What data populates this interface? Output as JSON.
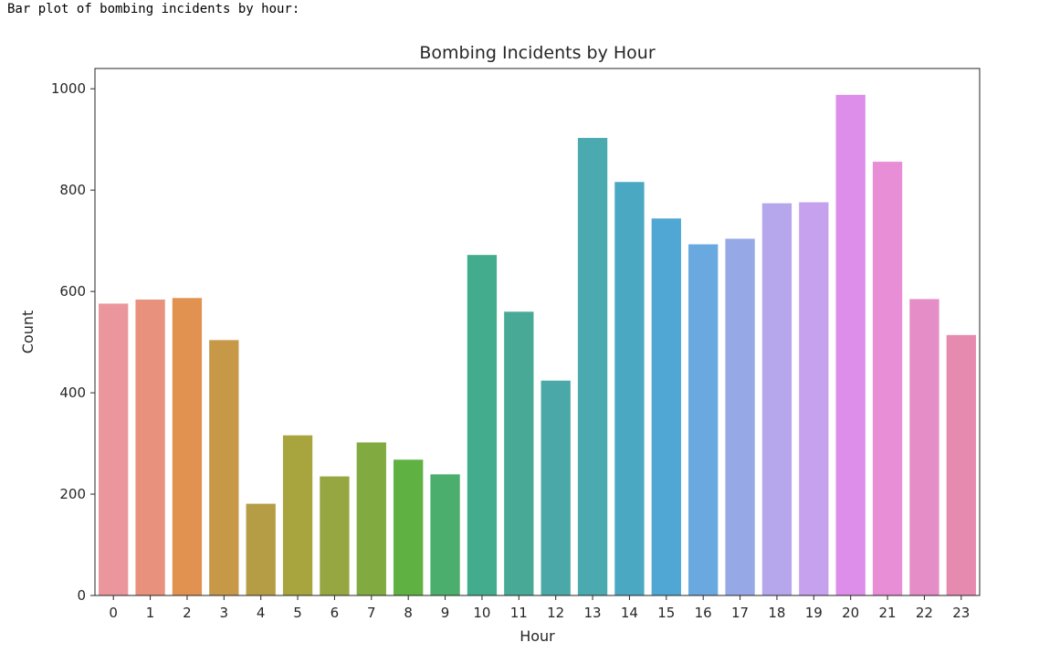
{
  "output": {
    "text": "Bar plot of bombing incidents by hour:"
  },
  "chart_data": {
    "type": "bar",
    "title": "Bombing Incidents by Hour",
    "xlabel": "Hour",
    "ylabel": "Count",
    "categories": [
      "0",
      "1",
      "2",
      "3",
      "4",
      "5",
      "6",
      "7",
      "8",
      "9",
      "10",
      "11",
      "12",
      "13",
      "14",
      "15",
      "16",
      "17",
      "18",
      "19",
      "20",
      "21",
      "22",
      "23"
    ],
    "values": [
      576,
      584,
      587,
      504,
      181,
      316,
      235,
      302,
      268,
      239,
      672,
      560,
      424,
      903,
      816,
      744,
      693,
      704,
      774,
      776,
      988,
      856,
      585,
      514
    ],
    "colors": [
      "#ea969c",
      "#e8927e",
      "#e19150",
      "#c69848",
      "#b59d46",
      "#a8a43e",
      "#96a742",
      "#81ab40",
      "#5fb142",
      "#4bae6c",
      "#43ac8d",
      "#48a997",
      "#4aa9a8",
      "#4ba9b0",
      "#4aa8c2",
      "#51a7d4",
      "#6aa8e0",
      "#97a8e7",
      "#b6a6ec",
      "#c6a2ee",
      "#dd8eea",
      "#e78ed7",
      "#e58dc6",
      "#e78ab0"
    ],
    "ylim": [
      0,
      1040
    ],
    "yticks": [
      0,
      200,
      400,
      600,
      800,
      1000
    ],
    "grid": false,
    "legend": "none"
  }
}
